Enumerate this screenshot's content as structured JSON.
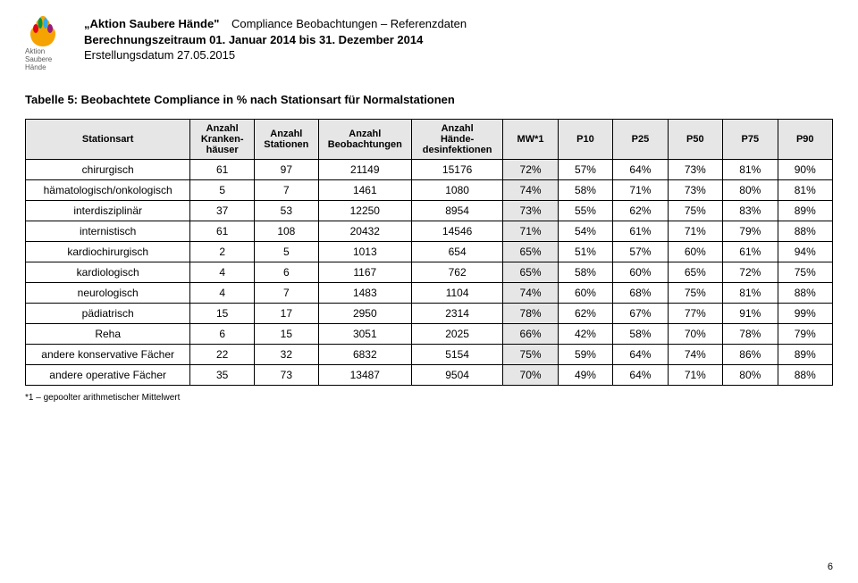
{
  "header": {
    "org_name": "„Aktion Saubere Hände\"",
    "title_right": "Compliance Beobachtungen – Referenzdaten",
    "period_label": "Berechnungszeitraum 01. Januar 2014 bis 31. Dezember 2014",
    "created_label": "Erstellungsdatum 27.05.2015",
    "logo_line1": "Aktion",
    "logo_line2": "Saubere Hände"
  },
  "table": {
    "caption": "Tabelle 5: Beobachtete Compliance in % nach Stationsart für Normalstationen",
    "columns": [
      "Stationsart",
      "Anzahl Kranken-häuser",
      "Anzahl Stationen",
      "Anzahl Beobachtungen",
      "Anzahl Hände-desinfektionen",
      "MW*1",
      "P10",
      "P25",
      "P50",
      "P75",
      "P90"
    ],
    "col_widths_pct": [
      18,
      7,
      7,
      10,
      10,
      6,
      6,
      6,
      6,
      6,
      6
    ],
    "header_bg": "#e6e6e6",
    "mw_bg": "#e6e6e6",
    "border_color": "#000000",
    "font_size_body": 12,
    "font_size_header": 11,
    "rows": [
      [
        "chirurgisch",
        "61",
        "97",
        "21149",
        "15176",
        "72%",
        "57%",
        "64%",
        "73%",
        "81%",
        "90%"
      ],
      [
        "hämatologisch/onkologisch",
        "5",
        "7",
        "1461",
        "1080",
        "74%",
        "58%",
        "71%",
        "73%",
        "80%",
        "81%"
      ],
      [
        "interdisziplinär",
        "37",
        "53",
        "12250",
        "8954",
        "73%",
        "55%",
        "62%",
        "75%",
        "83%",
        "89%"
      ],
      [
        "internistisch",
        "61",
        "108",
        "20432",
        "14546",
        "71%",
        "54%",
        "61%",
        "71%",
        "79%",
        "88%"
      ],
      [
        "kardiochirurgisch",
        "2",
        "5",
        "1013",
        "654",
        "65%",
        "51%",
        "57%",
        "60%",
        "61%",
        "94%"
      ],
      [
        "kardiologisch",
        "4",
        "6",
        "1167",
        "762",
        "65%",
        "58%",
        "60%",
        "65%",
        "72%",
        "75%"
      ],
      [
        "neurologisch",
        "4",
        "7",
        "1483",
        "1104",
        "74%",
        "60%",
        "68%",
        "75%",
        "81%",
        "88%"
      ],
      [
        "pädiatrisch",
        "15",
        "17",
        "2950",
        "2314",
        "78%",
        "62%",
        "67%",
        "77%",
        "91%",
        "99%"
      ],
      [
        "Reha",
        "6",
        "15",
        "3051",
        "2025",
        "66%",
        "42%",
        "58%",
        "70%",
        "78%",
        "79%"
      ],
      [
        "andere konservative Fächer",
        "22",
        "32",
        "6832",
        "5154",
        "75%",
        "59%",
        "64%",
        "74%",
        "86%",
        "89%"
      ],
      [
        "andere operative Fächer",
        "35",
        "73",
        "13487",
        "9504",
        "70%",
        "49%",
        "64%",
        "71%",
        "80%",
        "88%"
      ]
    ]
  },
  "footnote": "*1 – gepoolter arithmetischer Mittelwert",
  "page_number": "6",
  "logo_colors": [
    "#f5a300",
    "#e2001a",
    "#009640",
    "#36a9e1",
    "#951b81"
  ]
}
